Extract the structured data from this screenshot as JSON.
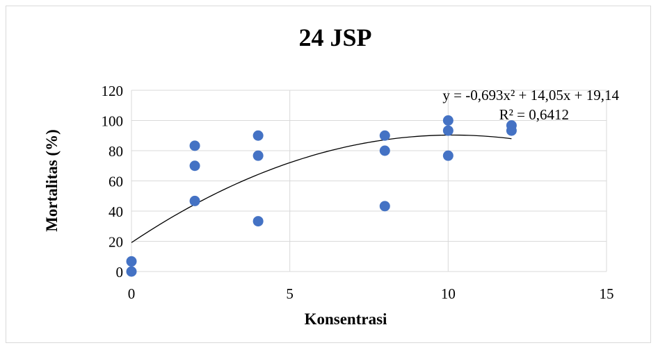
{
  "chart_data": {
    "type": "scatter",
    "title": "24 JSP",
    "xlabel": "Konsentrasi",
    "ylabel": "Mortalitas (%)",
    "xlim": [
      0,
      15
    ],
    "ylim": [
      0,
      120
    ],
    "x_ticks": [
      "0",
      "5",
      "10",
      "15"
    ],
    "y_ticks": [
      "0",
      "20",
      "40",
      "60",
      "80",
      "100",
      "120"
    ],
    "grid": true,
    "legend": "none",
    "marker_color": "#4472c4",
    "points": [
      {
        "x": 0,
        "y": 0
      },
      {
        "x": 0,
        "y": 6.7
      },
      {
        "x": 2,
        "y": 46.7
      },
      {
        "x": 2,
        "y": 70
      },
      {
        "x": 2,
        "y": 83.3
      },
      {
        "x": 4,
        "y": 33.3
      },
      {
        "x": 4,
        "y": 76.7
      },
      {
        "x": 4,
        "y": 90
      },
      {
        "x": 8,
        "y": 43.3
      },
      {
        "x": 8,
        "y": 80
      },
      {
        "x": 8,
        "y": 90
      },
      {
        "x": 10,
        "y": 76.7
      },
      {
        "x": 10,
        "y": 93.3
      },
      {
        "x": 10,
        "y": 100
      },
      {
        "x": 12,
        "y": 93.3
      },
      {
        "x": 12,
        "y": 96.7
      }
    ],
    "trendline": {
      "type": "polynomial",
      "coefficients": {
        "a": -0.693,
        "b": 14.05,
        "c": 19.14
      },
      "x_range": [
        0,
        12
      ],
      "equation": "y = -0,693x² + 14,05x + 19,14",
      "r_squared": "R² = 0,6412"
    }
  }
}
